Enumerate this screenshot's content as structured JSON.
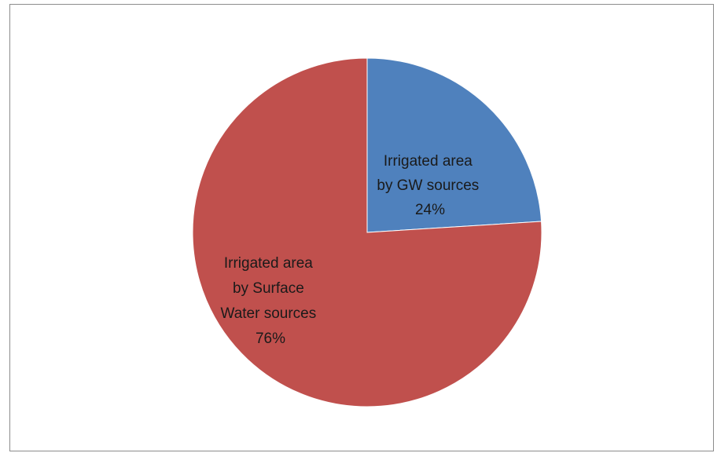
{
  "chart_data": {
    "type": "pie",
    "slices": [
      {
        "name_lines": [
          "Irrigated area",
          "by GW sources"
        ],
        "percent_label": "24%",
        "value": 24,
        "color": "#4f81bd"
      },
      {
        "name_lines": [
          "Irrigated area",
          "by Surface",
          "Water sources"
        ],
        "percent_label": "76%",
        "value": 76,
        "color": "#c0504d"
      }
    ],
    "title": "",
    "legend": "none",
    "start_angle_deg": 0,
    "direction": "clockwise"
  }
}
